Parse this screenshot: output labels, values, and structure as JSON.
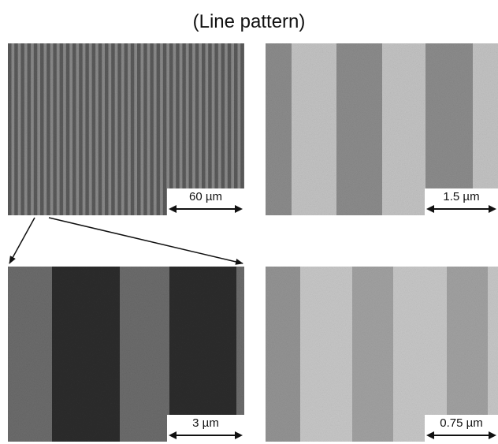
{
  "title": "(Line pattern)",
  "panels": [
    {
      "id": "top-left",
      "scale_label": "60 µm"
    },
    {
      "id": "top-right",
      "scale_label": "1.5 µm"
    },
    {
      "id": "bottom-left",
      "scale_label": "3 µm"
    },
    {
      "id": "bottom-right",
      "scale_label": "0.75 µm"
    }
  ],
  "colors": {
    "background": "#ffffff",
    "arrow": "#111111",
    "dark_stripe": "#555555",
    "light_stripe": "#b9b9b9"
  }
}
